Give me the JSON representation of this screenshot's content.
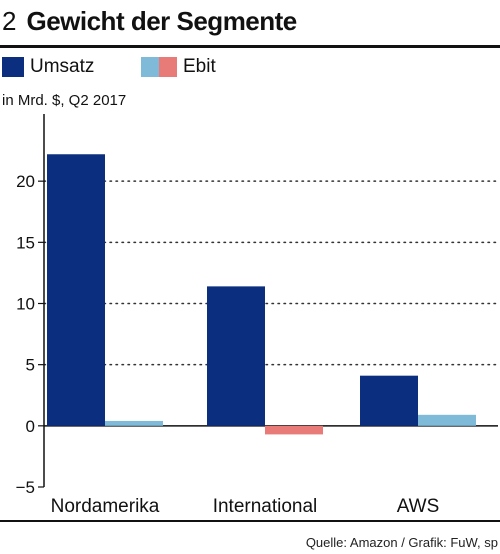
{
  "figure": {
    "number": "2",
    "title": "Gewicht der Segmente",
    "unit": "in Mrd. $, Q2 2017",
    "source": "Quelle: Amazon / Grafik: FuW, sp"
  },
  "legend": {
    "umsatz": "Umsatz",
    "ebit": "Ebit"
  },
  "colors": {
    "umsatz": "#0b2f7e",
    "ebit_positive": "#7fbad8",
    "ebit_negative": "#e87b78",
    "grid": "#333333"
  },
  "chart_data": {
    "type": "bar",
    "title": "Gewicht der Segmente",
    "ylabel": "in Mrd. $, Q2 2017",
    "categories": [
      "Nordamerika",
      "International",
      "AWS"
    ],
    "series": [
      {
        "name": "Umsatz",
        "values": [
          22.2,
          11.4,
          4.1
        ]
      },
      {
        "name": "Ebit",
        "values": [
          0.4,
          -0.7,
          0.9
        ]
      }
    ],
    "ylim": [
      -5,
      25
    ],
    "yticks": [
      20,
      15,
      10,
      5,
      0,
      -5
    ],
    "ytick_labels": [
      "20",
      "15",
      "10",
      "5",
      "0",
      "−5"
    ],
    "grid": true
  }
}
